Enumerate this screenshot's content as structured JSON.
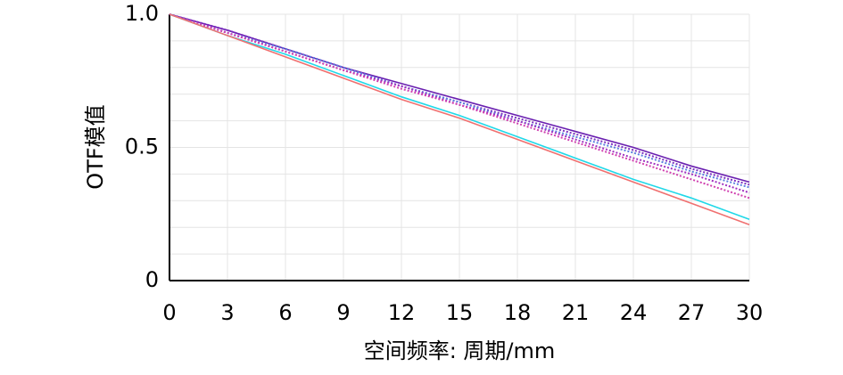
{
  "chart_data": {
    "type": "line",
    "xlabel": "空间频率: 周期/mm",
    "ylabel": "OTF模值",
    "x": [
      0,
      3,
      6,
      9,
      12,
      15,
      18,
      21,
      24,
      27,
      30
    ],
    "xlim": [
      0,
      30
    ],
    "xticks": [
      0,
      3,
      6,
      9,
      12,
      15,
      18,
      21,
      24,
      27,
      30
    ],
    "ylim": [
      0,
      1
    ],
    "yticks": [
      0,
      0.5,
      {
        "value": 1,
        "label": "1.0"
      }
    ],
    "minor_yticks": [
      0.1,
      0.2,
      0.3,
      0.4,
      0.6,
      0.7,
      0.8,
      0.9
    ],
    "grid": true,
    "series": [
      {
        "color": "#6a1fb0",
        "dash": "solid",
        "values": [
          1,
          0.94,
          0.87,
          0.8,
          0.74,
          0.68,
          0.62,
          0.56,
          0.5,
          0.43,
          0.37
        ]
      },
      {
        "color": "#7b2fc0",
        "dash": "dotted",
        "values": [
          1,
          0.94,
          0.87,
          0.8,
          0.73,
          0.67,
          0.61,
          0.55,
          0.49,
          0.42,
          0.36
        ]
      },
      {
        "color": "#5a7ee0",
        "dash": "dotted",
        "values": [
          1,
          0.93,
          0.87,
          0.8,
          0.73,
          0.67,
          0.6,
          0.54,
          0.48,
          0.41,
          0.35
        ]
      },
      {
        "color": "#a030c0",
        "dash": "dotted",
        "values": [
          1,
          0.93,
          0.86,
          0.79,
          0.73,
          0.66,
          0.6,
          0.53,
          0.46,
          0.4,
          0.33
        ]
      },
      {
        "color": "#d040b0",
        "dash": "dotted",
        "values": [
          1,
          0.93,
          0.86,
          0.79,
          0.72,
          0.66,
          0.59,
          0.52,
          0.45,
          0.38,
          0.31
        ]
      },
      {
        "color": "#20d8e8",
        "dash": "solid",
        "values": [
          1,
          0.92,
          0.85,
          0.77,
          0.69,
          0.62,
          0.54,
          0.46,
          0.38,
          0.31,
          0.23
        ]
      },
      {
        "color": "#f07070",
        "dash": "solid",
        "values": [
          1,
          0.92,
          0.84,
          0.76,
          0.68,
          0.61,
          0.53,
          0.45,
          0.37,
          0.29,
          0.21
        ]
      }
    ]
  }
}
